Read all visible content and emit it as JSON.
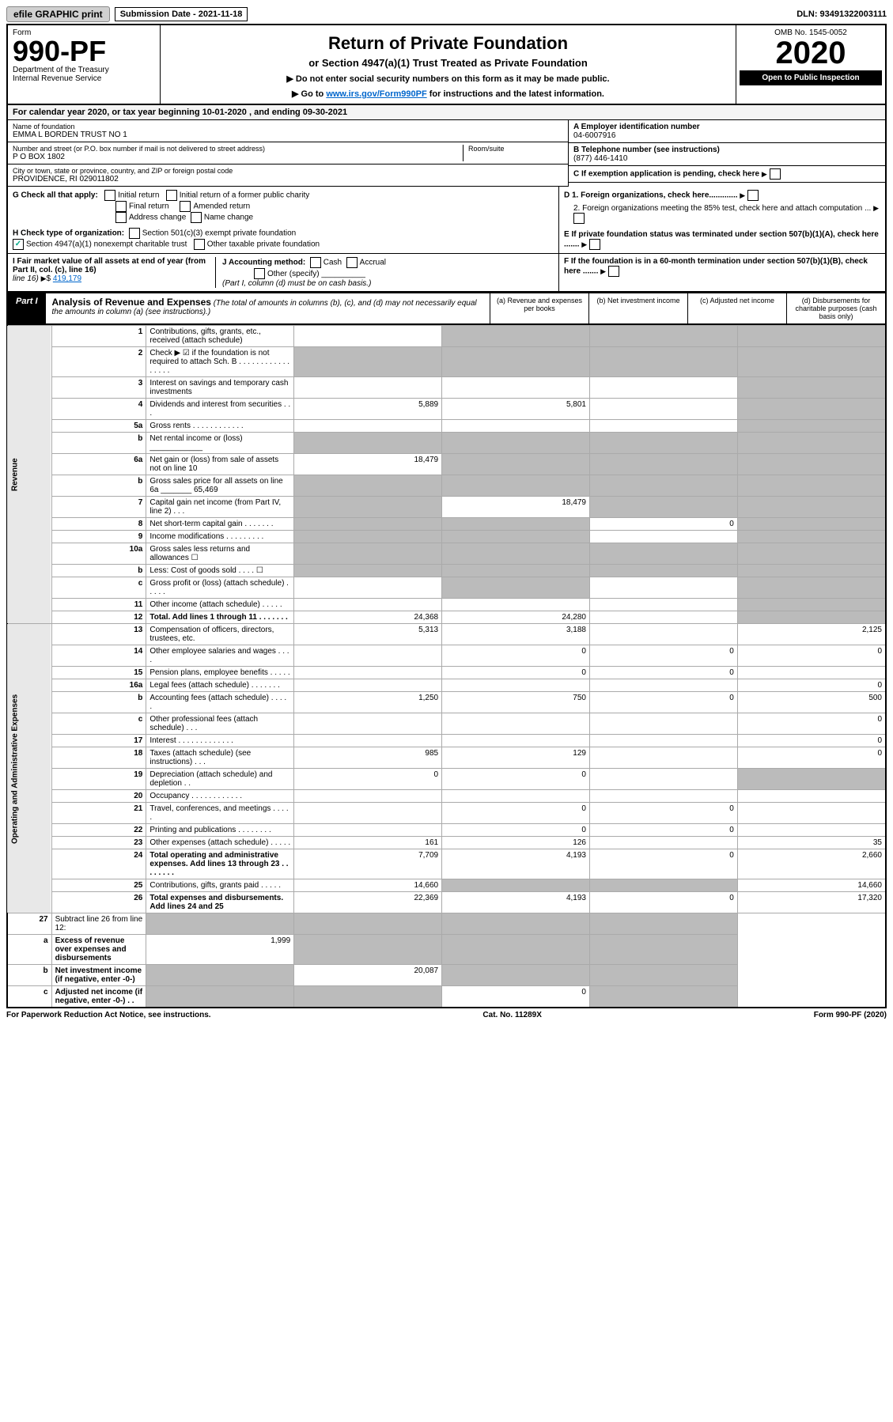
{
  "topbar": {
    "efile": "efile GRAPHIC print",
    "sub_label": "Submission Date - 2021-11-18",
    "dln": "DLN: 93491322003111"
  },
  "header": {
    "form_word": "Form",
    "form_no": "990-PF",
    "dept1": "Department of the Treasury",
    "dept2": "Internal Revenue Service",
    "title": "Return of Private Foundation",
    "subtitle": "or Section 4947(a)(1) Trust Treated as Private Foundation",
    "note1": "▶ Do not enter social security numbers on this form as it may be made public.",
    "note2_pre": "▶ Go to ",
    "note2_link": "www.irs.gov/Form990PF",
    "note2_post": " for instructions and the latest information.",
    "omb": "OMB No. 1545-0052",
    "year": "2020",
    "open": "Open to Public Inspection"
  },
  "cal": "For calendar year 2020, or tax year beginning 10-01-2020           , and ending 09-30-2021",
  "foundation": {
    "name_lbl": "Name of foundation",
    "name": "EMMA L BORDEN TRUST NO 1",
    "addr_lbl": "Number and street (or P.O. box number if mail is not delivered to street address)",
    "addr": "P O BOX 1802",
    "room_lbl": "Room/suite",
    "city_lbl": "City or town, state or province, country, and ZIP or foreign postal code",
    "city": "PROVIDENCE, RI  029011802",
    "a_lbl": "A Employer identification number",
    "a_val": "04-6007916",
    "b_lbl": "B Telephone number (see instructions)",
    "b_val": "(877) 446-1410",
    "c_lbl": "C If exemption application is pending, check here"
  },
  "g": {
    "label": "G Check all that apply:",
    "initial": "Initial return",
    "final": "Final return",
    "addr": "Address change",
    "initial_former": "Initial return of a former public charity",
    "amended": "Amended return",
    "name": "Name change"
  },
  "h": {
    "label": "H Check type of organization:",
    "s501": "Section 501(c)(3) exempt private foundation",
    "s4947": "Section 4947(a)(1) nonexempt charitable trust",
    "other_tax": "Other taxable private foundation"
  },
  "i": {
    "label": "I Fair market value of all assets at end of year (from Part II, col. (c), line 16)",
    "amt": "419,179"
  },
  "j": {
    "label": "J Accounting method:",
    "cash": "Cash",
    "accrual": "Accrual",
    "other": "Other (specify)",
    "note": "(Part I, column (d) must be on cash basis.)"
  },
  "d": {
    "d1": "D 1. Foreign organizations, check here.............",
    "d2": "2. Foreign organizations meeting the 85% test, check here and attach computation ..."
  },
  "e_lbl": "E  If private foundation status was terminated under section 507(b)(1)(A), check here .......",
  "f_lbl": "F  If the foundation is in a 60-month termination under section 507(b)(1)(B), check here .......",
  "part1": {
    "label": "Part I",
    "title": "Analysis of Revenue and Expenses",
    "title_note": "(The total of amounts in columns (b), (c), and (d) may not necessarily equal the amounts in column (a) (see instructions).)",
    "col_a": "(a) Revenue and expenses per books",
    "col_b": "(b) Net investment income",
    "col_c": "(c) Adjusted net income",
    "col_d": "(d) Disbursements for charitable purposes (cash basis only)"
  },
  "section_rev": "Revenue",
  "section_exp": "Operating and Administrative Expenses",
  "rows": [
    {
      "ln": "1",
      "desc": "Contributions, gifts, grants, etc., received (attach schedule)",
      "a": "",
      "b": "g",
      "c": "g",
      "d": "g"
    },
    {
      "ln": "2",
      "desc": "Check ▶ ☑ if the foundation is not required to attach Sch. B  . . . . . . . . . . . . . . . . .",
      "a": "g",
      "b": "g",
      "c": "g",
      "d": "g"
    },
    {
      "ln": "3",
      "desc": "Interest on savings and temporary cash investments",
      "a": "",
      "b": "",
      "c": "",
      "d": "g"
    },
    {
      "ln": "4",
      "desc": "Dividends and interest from securities  . . .",
      "a": "5,889",
      "b": "5,801",
      "c": "",
      "d": "g"
    },
    {
      "ln": "5a",
      "desc": "Gross rents  . . . . . . . . . . . .",
      "a": "",
      "b": "",
      "c": "",
      "d": "g"
    },
    {
      "ln": "b",
      "desc": "Net rental income or (loss)  ____________",
      "a": "g",
      "b": "g",
      "c": "g",
      "d": "g"
    },
    {
      "ln": "6a",
      "desc": "Net gain or (loss) from sale of assets not on line 10",
      "a": "18,479",
      "b": "g",
      "c": "g",
      "d": "g"
    },
    {
      "ln": "b",
      "desc": "Gross sales price for all assets on line 6a _______ 65,469",
      "a": "g",
      "b": "g",
      "c": "g",
      "d": "g"
    },
    {
      "ln": "7",
      "desc": "Capital gain net income (from Part IV, line 2)  . . .",
      "a": "g",
      "b": "18,479",
      "c": "g",
      "d": "g"
    },
    {
      "ln": "8",
      "desc": "Net short-term capital gain  . . . . . . .",
      "a": "g",
      "b": "g",
      "c": "0",
      "d": "g"
    },
    {
      "ln": "9",
      "desc": "Income modifications  . . . . . . . . .",
      "a": "g",
      "b": "g",
      "c": "",
      "d": "g"
    },
    {
      "ln": "10a",
      "desc": "Gross sales less returns and allowances  ☐",
      "a": "g",
      "b": "g",
      "c": "g",
      "d": "g"
    },
    {
      "ln": "b",
      "desc": "Less: Cost of goods sold  . . . .  ☐",
      "a": "g",
      "b": "g",
      "c": "g",
      "d": "g"
    },
    {
      "ln": "c",
      "desc": "Gross profit or (loss) (attach schedule)  . . . . .",
      "a": "",
      "b": "g",
      "c": "",
      "d": "g"
    },
    {
      "ln": "11",
      "desc": "Other income (attach schedule)  . . . . .",
      "a": "",
      "b": "",
      "c": "",
      "d": "g"
    },
    {
      "ln": "12",
      "desc": "Total. Add lines 1 through 11  . . . . . . .",
      "a": "24,368",
      "b": "24,280",
      "c": "",
      "d": "g",
      "bold": true
    }
  ],
  "rows2": [
    {
      "ln": "13",
      "desc": "Compensation of officers, directors, trustees, etc.",
      "a": "5,313",
      "b": "3,188",
      "c": "",
      "d": "2,125"
    },
    {
      "ln": "14",
      "desc": "Other employee salaries and wages  . . . .",
      "a": "",
      "b": "0",
      "c": "0",
      "d": "0"
    },
    {
      "ln": "15",
      "desc": "Pension plans, employee benefits  . . . . .",
      "a": "",
      "b": "0",
      "c": "0",
      "d": ""
    },
    {
      "ln": "16a",
      "desc": "Legal fees (attach schedule)  . . . . . . .",
      "a": "",
      "b": "",
      "c": "",
      "d": "0"
    },
    {
      "ln": "b",
      "desc": "Accounting fees (attach schedule)  . . . . .",
      "a": "1,250",
      "b": "750",
      "c": "0",
      "d": "500"
    },
    {
      "ln": "c",
      "desc": "Other professional fees (attach schedule)  . . .",
      "a": "",
      "b": "",
      "c": "",
      "d": "0"
    },
    {
      "ln": "17",
      "desc": "Interest  . . . . . . . . . . . . .",
      "a": "",
      "b": "",
      "c": "",
      "d": "0"
    },
    {
      "ln": "18",
      "desc": "Taxes (attach schedule) (see instructions)  . . .",
      "a": "985",
      "b": "129",
      "c": "",
      "d": "0"
    },
    {
      "ln": "19",
      "desc": "Depreciation (attach schedule) and depletion  . .",
      "a": "0",
      "b": "0",
      "c": "",
      "d": "g"
    },
    {
      "ln": "20",
      "desc": "Occupancy  . . . . . . . . . . . .",
      "a": "",
      "b": "",
      "c": "",
      "d": ""
    },
    {
      "ln": "21",
      "desc": "Travel, conferences, and meetings  . . . . .",
      "a": "",
      "b": "0",
      "c": "0",
      "d": ""
    },
    {
      "ln": "22",
      "desc": "Printing and publications  . . . . . . . .",
      "a": "",
      "b": "0",
      "c": "0",
      "d": ""
    },
    {
      "ln": "23",
      "desc": "Other expenses (attach schedule)  . . . . .",
      "a": "161",
      "b": "126",
      "c": "",
      "d": "35"
    },
    {
      "ln": "24",
      "desc": "Total operating and administrative expenses. Add lines 13 through 23  . . . . . . . .",
      "a": "7,709",
      "b": "4,193",
      "c": "0",
      "d": "2,660",
      "bold": true
    },
    {
      "ln": "25",
      "desc": "Contributions, gifts, grants paid  . . . . .",
      "a": "14,660",
      "b": "g",
      "c": "g",
      "d": "14,660"
    },
    {
      "ln": "26",
      "desc": "Total expenses and disbursements. Add lines 24 and 25",
      "a": "22,369",
      "b": "4,193",
      "c": "0",
      "d": "17,320",
      "bold": true
    }
  ],
  "rows3": [
    {
      "ln": "27",
      "desc": "Subtract line 26 from line 12:",
      "a": "g",
      "b": "g",
      "c": "g",
      "d": "g"
    },
    {
      "ln": "a",
      "desc": "Excess of revenue over expenses and disbursements",
      "a": "1,999",
      "b": "g",
      "c": "g",
      "d": "g",
      "bold": true
    },
    {
      "ln": "b",
      "desc": "Net investment income (if negative, enter -0-)",
      "a": "g",
      "b": "20,087",
      "c": "g",
      "d": "g",
      "bold": true
    },
    {
      "ln": "c",
      "desc": "Adjusted net income (if negative, enter -0-)  . .",
      "a": "g",
      "b": "g",
      "c": "0",
      "d": "g",
      "bold": true
    }
  ],
  "footer": {
    "left": "For Paperwork Reduction Act Notice, see instructions.",
    "mid": "Cat. No. 11289X",
    "right": "Form 990-PF (2020)"
  }
}
